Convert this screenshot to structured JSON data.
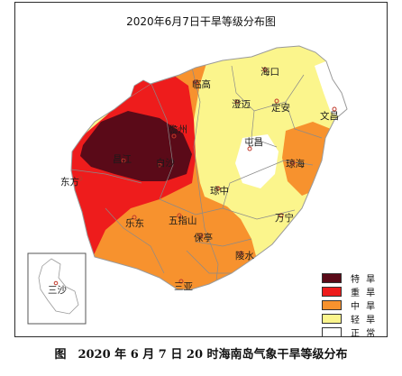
{
  "title": "2020年6月7日干旱等级分布图",
  "caption": "图　2020 年 6 月 7 日 20 时海南岛气象干旱等级分布",
  "legend": [
    {
      "label": "特 旱",
      "color": "#5a0a18"
    },
    {
      "label": "重 旱",
      "color": "#ee1c1c"
    },
    {
      "label": "中 旱",
      "color": "#f7922e"
    },
    {
      "label": "轻 旱",
      "color": "#fbf58c"
    },
    {
      "label": "正 常",
      "color": "#ffffff"
    }
  ],
  "cities": {
    "haikou": "海口",
    "lingao": "临高",
    "chengmai": "澄迈",
    "dingan": "定安",
    "wenchang": "文昌",
    "danzhou": "儋州",
    "tunchang": "屯昌",
    "qionghai": "琼海",
    "baisha": "白沙",
    "changjiang": "昌江",
    "dongfang": "东方",
    "qiongzhong": "琼中",
    "ledong": "乐东",
    "wuzhishan": "五指山",
    "wanning": "万宁",
    "baoting": "保亭",
    "lingshui": "陵水",
    "sanya": "三亚",
    "sansha": "三沙"
  }
}
